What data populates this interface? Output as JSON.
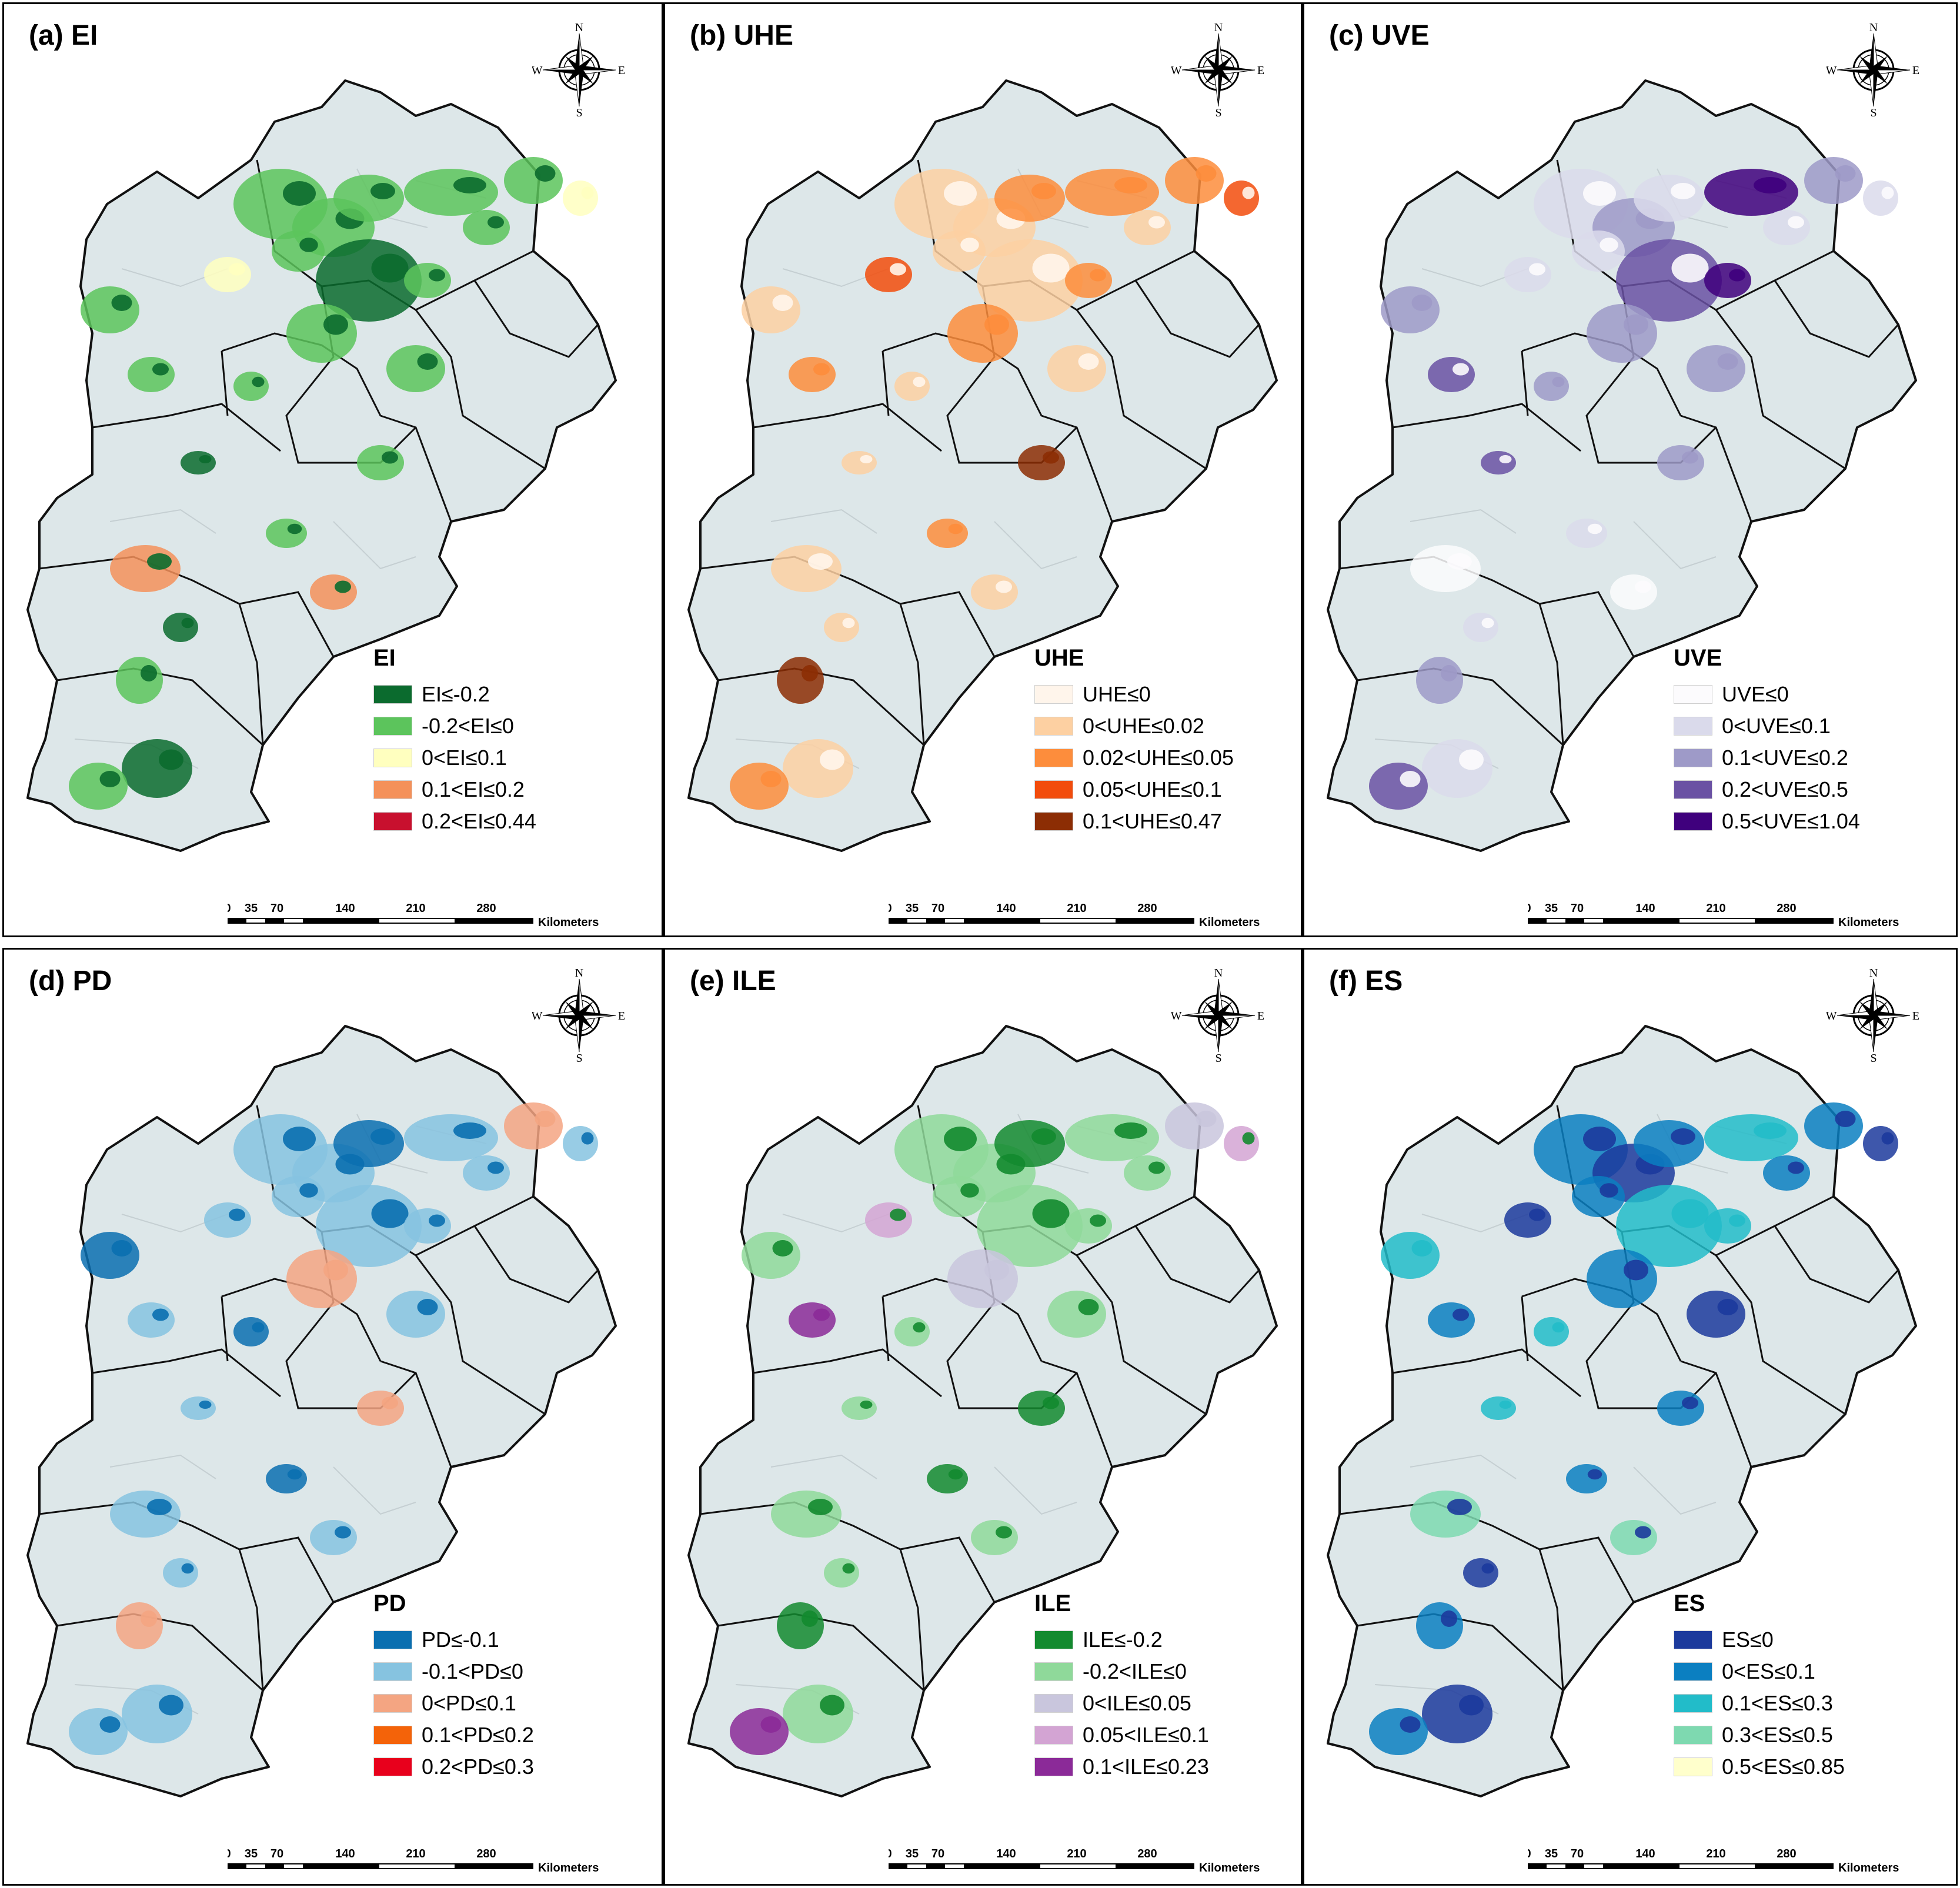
{
  "compass": {
    "n": "N",
    "s": "S",
    "e": "E",
    "w": "W"
  },
  "scale": {
    "ticks": [
      "0",
      "35",
      "70",
      "140",
      "210",
      "280"
    ],
    "unit": "Kilometers"
  },
  "colors": {
    "land": "#dde7e9",
    "border": "#111111",
    "inner": "#c9d3d6"
  },
  "panels": [
    {
      "title": "(a) EI",
      "legend_title": "EI",
      "classes": [
        {
          "label": "EI≤-0.2",
          "color": "#0b6b2e"
        },
        {
          "label": "-0.2<EI≤0",
          "color": "#5cc45c"
        },
        {
          "label": "0<EI≤0.1",
          "color": "#ffffbf"
        },
        {
          "label": "0.1<EI≤0.2",
          "color": "#f4915a"
        },
        {
          "label": "0.2<EI≤0.44",
          "color": "#c8102e"
        }
      ]
    },
    {
      "title": "(b) UHE",
      "legend_title": "UHE",
      "classes": [
        {
          "label": "UHE≤0",
          "color": "#fff5eb"
        },
        {
          "label": "0<UHE≤0.02",
          "color": "#fdd0a2"
        },
        {
          "label": "0.02<UHE≤0.05",
          "color": "#fd8d3c"
        },
        {
          "label": "0.05<UHE≤0.1",
          "color": "#f24c0c"
        },
        {
          "label": "0.1<UHE≤0.47",
          "color": "#8c2d04"
        }
      ]
    },
    {
      "title": "(c) UVE",
      "legend_title": "UVE",
      "classes": [
        {
          "label": "UVE≤0",
          "color": "#fcfbfd"
        },
        {
          "label": "0<UVE≤0.1",
          "color": "#dadaeb"
        },
        {
          "label": "0.1<UVE≤0.2",
          "color": "#9e9ac8"
        },
        {
          "label": "0.2<UVE≤0.5",
          "color": "#6a51a3"
        },
        {
          "label": "0.5<UVE≤1.04",
          "color": "#3f007d"
        }
      ]
    },
    {
      "title": "(d) PD",
      "legend_title": "PD",
      "classes": [
        {
          "label": "PD≤-0.1",
          "color": "#0a6fb0"
        },
        {
          "label": "-0.1<PD≤0",
          "color": "#86c3e0"
        },
        {
          "label": "0<PD≤0.1",
          "color": "#f4a582"
        },
        {
          "label": "0.1<PD≤0.2",
          "color": "#f46309"
        },
        {
          "label": "0.2<PD≤0.3",
          "color": "#e8001c"
        }
      ]
    },
    {
      "title": "(e) ILE",
      "legend_title": "ILE",
      "classes": [
        {
          "label": "ILE≤-0.2",
          "color": "#138a2f"
        },
        {
          "label": "-0.2<ILE≤0",
          "color": "#8fd99a"
        },
        {
          "label": "0<ILE≤0.05",
          "color": "#c9c6dd"
        },
        {
          "label": "0.05<ILE≤0.1",
          "color": "#d3a4d3"
        },
        {
          "label": "0.1<ILE≤0.23",
          "color": "#8b2a98"
        }
      ]
    },
    {
      "title": "(f) ES",
      "legend_title": "ES",
      "classes": [
        {
          "label": "ES≤0",
          "color": "#1c3a9c"
        },
        {
          "label": "0<ES≤0.1",
          "color": "#0b7fc1"
        },
        {
          "label": "0.1<ES≤0.3",
          "color": "#22bcc9"
        },
        {
          "label": "0.3<ES≤0.5",
          "color": "#7ed9b0"
        },
        {
          "label": "0.5<ES≤0.85",
          "color": "#ffffcc"
        }
      ]
    }
  ]
}
